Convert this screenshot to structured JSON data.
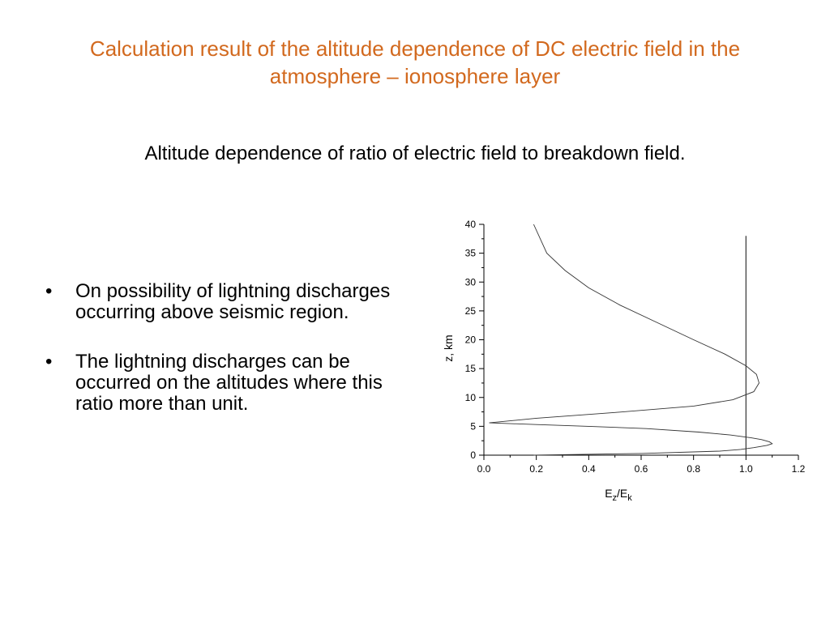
{
  "slide": {
    "title": "Calculation result of the altitude dependence of DC electric field in the atmosphere – ionosphere layer",
    "subtitle": "Altitude dependence of ratio of electric field to breakdown field.",
    "bullet_marker": "•",
    "bullets": [
      "On possibility of lightning discharges occurring above seismic region.",
      "The lightning discharges can be occurred on the altitudes where this ratio more than unit."
    ]
  },
  "colors": {
    "title": "#d2691e",
    "text": "#000000"
  },
  "chart_data": {
    "type": "line",
    "title": "",
    "xlabel_main": "E",
    "xlabel_sub1": "z",
    "xlabel_mid": "/E",
    "xlabel_sub2": "k",
    "ylabel": "z, km",
    "xlim": [
      0.0,
      1.2
    ],
    "ylim": [
      0,
      40
    ],
    "x_ticks": [
      "0.0",
      "0.2",
      "0.4",
      "0.6",
      "0.8",
      "1.0",
      "1.2"
    ],
    "x_tick_values": [
      0.0,
      0.2,
      0.4,
      0.6,
      0.8,
      1.0,
      1.2
    ],
    "y_ticks": [
      "0",
      "5",
      "10",
      "15",
      "20",
      "25",
      "30",
      "35",
      "40"
    ],
    "y_tick_values": [
      0,
      5,
      10,
      15,
      20,
      25,
      30,
      35,
      40
    ],
    "grid": false,
    "reference_line": {
      "x": 1.0,
      "y_range": [
        0,
        38
      ]
    },
    "series": [
      {
        "x": [
          0.19,
          0.6,
          0.9,
          0.98,
          1.03,
          1.08,
          1.1,
          1.09,
          1.06,
          1.02,
          0.94,
          0.82,
          0.62,
          0.4,
          0.2,
          0.02,
          0.2,
          0.5,
          0.8,
          0.95,
          1.03,
          1.05,
          1.04,
          1.0,
          0.92,
          0.8,
          0.66,
          0.52,
          0.4,
          0.31,
          0.24,
          0.19
        ],
        "y": [
          0.0,
          0.3,
          0.7,
          1.0,
          1.3,
          1.7,
          2.0,
          2.3,
          2.7,
          3.0,
          3.5,
          4.0,
          4.6,
          5.0,
          5.3,
          5.6,
          6.4,
          7.4,
          8.5,
          9.6,
          11.0,
          12.5,
          14.0,
          15.5,
          17.5,
          20.0,
          23.0,
          26.0,
          29.0,
          32.0,
          35.0,
          40.0
        ]
      }
    ]
  }
}
